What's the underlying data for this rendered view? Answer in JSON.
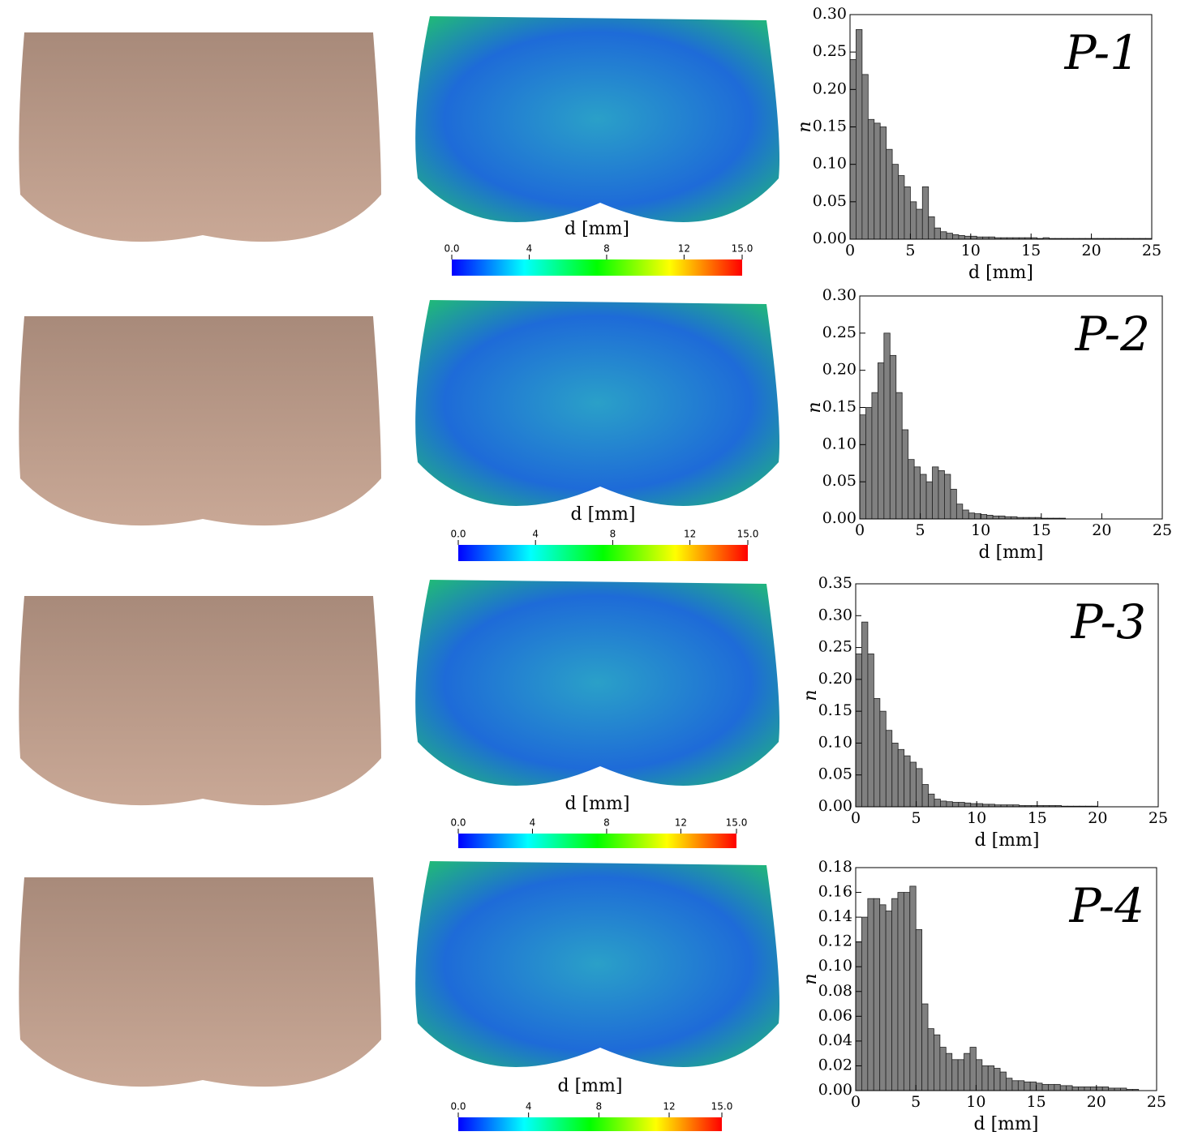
{
  "chart_data": [
    {
      "type": "histogram",
      "title": "P-1",
      "xlabel": "d [mm]",
      "ylabel": "n",
      "color": "#808080",
      "bins": [
        0,
        0.5,
        1,
        1.5,
        2,
        2.5,
        3,
        3.5,
        4,
        4.5,
        5,
        5.5,
        6,
        6.5,
        7,
        7.5,
        8,
        8.5,
        9,
        9.5,
        10,
        10.5,
        11,
        11.5,
        12,
        12.5,
        13,
        13.5,
        14,
        14.5,
        15,
        15.5,
        16,
        16.5,
        17,
        17.5,
        18,
        18.5,
        19,
        19.5,
        20,
        20.5,
        21,
        21.5,
        22,
        22.5,
        23,
        23.5,
        24,
        24.5,
        25
      ],
      "values": [
        0.24,
        0.28,
        0.22,
        0.16,
        0.155,
        0.15,
        0.12,
        0.1,
        0.085,
        0.07,
        0.05,
        0.04,
        0.07,
        0.03,
        0.015,
        0.01,
        0.008,
        0.006,
        0.005,
        0.004,
        0.004,
        0.003,
        0.003,
        0.003,
        0.002,
        0.002,
        0.002,
        0.002,
        0.002,
        0.002,
        0.002,
        0.001,
        0.002,
        0.001,
        0.001,
        0.001,
        0.001,
        0.001,
        0.001,
        0.001,
        0.001,
        0.001,
        0.001,
        0.001,
        0.001,
        0.001,
        0.001,
        0.001,
        0.001,
        0.001
      ],
      "xlim": [
        0,
        25
      ],
      "xticks": [
        0,
        5,
        10,
        15,
        20,
        25
      ],
      "ylim": [
        0,
        0.3
      ],
      "yticks": [
        {
          "value": 0,
          "label": "0.00"
        },
        {
          "value": 0.05,
          "label": "0.05"
        },
        {
          "value": 0.1,
          "label": "0.10"
        },
        {
          "value": 0.15,
          "label": "0.15"
        },
        {
          "value": 0.2,
          "label": "0.20"
        },
        {
          "value": 0.25,
          "label": "0.25"
        },
        {
          "value": 0.3,
          "label": "0.30"
        }
      ]
    },
    {
      "type": "histogram",
      "title": "P-2",
      "xlabel": "d [mm]",
      "ylabel": "n",
      "color": "#808080",
      "bins": [
        0,
        0.5,
        1,
        1.5,
        2,
        2.5,
        3,
        3.5,
        4,
        4.5,
        5,
        5.5,
        6,
        6.5,
        7,
        7.5,
        8,
        8.5,
        9,
        9.5,
        10,
        10.5,
        11,
        11.5,
        12,
        12.5,
        13,
        13.5,
        14,
        14.5,
        15,
        15.5,
        16,
        16.5,
        17,
        17.5,
        18,
        18.5,
        19,
        19.5,
        20,
        20.5,
        21,
        21.5,
        22,
        22.5,
        23,
        23.5,
        24,
        24.5,
        25
      ],
      "values": [
        0.14,
        0.15,
        0.17,
        0.21,
        0.25,
        0.22,
        0.17,
        0.12,
        0.08,
        0.07,
        0.06,
        0.05,
        0.07,
        0.065,
        0.06,
        0.04,
        0.02,
        0.012,
        0.008,
        0.007,
        0.006,
        0.005,
        0.004,
        0.004,
        0.003,
        0.003,
        0.002,
        0.002,
        0.002,
        0.002,
        0.001,
        0.001,
        0.001,
        0.001,
        0,
        0,
        0,
        0,
        0,
        0,
        0,
        0,
        0,
        0,
        0,
        0,
        0,
        0,
        0,
        0
      ],
      "xlim": [
        0,
        25
      ],
      "xticks": [
        0,
        5,
        10,
        15,
        20,
        25
      ],
      "ylim": [
        0,
        0.3
      ],
      "yticks": [
        {
          "value": 0,
          "label": "0.00"
        },
        {
          "value": 0.05,
          "label": "0.05"
        },
        {
          "value": 0.1,
          "label": "0.10"
        },
        {
          "value": 0.15,
          "label": "0.15"
        },
        {
          "value": 0.2,
          "label": "0.20"
        },
        {
          "value": 0.25,
          "label": "0.25"
        },
        {
          "value": 0.3,
          "label": "0.30"
        }
      ]
    },
    {
      "type": "histogram",
      "title": "P-3",
      "xlabel": "d [mm]",
      "ylabel": "n",
      "color": "#808080",
      "bins": [
        0,
        0.5,
        1,
        1.5,
        2,
        2.5,
        3,
        3.5,
        4,
        4.5,
        5,
        5.5,
        6,
        6.5,
        7,
        7.5,
        8,
        8.5,
        9,
        9.5,
        10,
        10.5,
        11,
        11.5,
        12,
        12.5,
        13,
        13.5,
        14,
        14.5,
        15,
        15.5,
        16,
        16.5,
        17,
        17.5,
        18,
        18.5,
        19,
        19.5,
        20,
        20.5,
        21,
        21.5,
        22,
        22.5,
        23,
        23.5,
        24,
        24.5,
        25
      ],
      "values": [
        0.24,
        0.29,
        0.24,
        0.17,
        0.15,
        0.12,
        0.1,
        0.09,
        0.08,
        0.07,
        0.06,
        0.035,
        0.02,
        0.012,
        0.009,
        0.008,
        0.007,
        0.007,
        0.006,
        0.005,
        0.005,
        0.004,
        0.004,
        0.003,
        0.003,
        0.003,
        0.003,
        0.002,
        0.002,
        0.002,
        0.002,
        0.002,
        0.002,
        0.002,
        0.001,
        0.001,
        0.001,
        0.001,
        0.001,
        0.001,
        0,
        0,
        0,
        0,
        0,
        0,
        0,
        0,
        0,
        0
      ],
      "xlim": [
        0,
        25
      ],
      "xticks": [
        0,
        5,
        10,
        15,
        20,
        25
      ],
      "ylim": [
        0,
        0.35
      ],
      "yticks": [
        {
          "value": 0,
          "label": "0.00"
        },
        {
          "value": 0.05,
          "label": "0.05"
        },
        {
          "value": 0.1,
          "label": "0.10"
        },
        {
          "value": 0.15,
          "label": "0.15"
        },
        {
          "value": 0.2,
          "label": "0.20"
        },
        {
          "value": 0.25,
          "label": "0.25"
        },
        {
          "value": 0.3,
          "label": "0.30"
        },
        {
          "value": 0.35,
          "label": "0.35"
        }
      ]
    },
    {
      "type": "histogram",
      "title": "P-4",
      "xlabel": "d [mm]",
      "ylabel": "n",
      "color": "#808080",
      "bins": [
        0,
        0.5,
        1,
        1.5,
        2,
        2.5,
        3,
        3.5,
        4,
        4.5,
        5,
        5.5,
        6,
        6.5,
        7,
        7.5,
        8,
        8.5,
        9,
        9.5,
        10,
        10.5,
        11,
        11.5,
        12,
        12.5,
        13,
        13.5,
        14,
        14.5,
        15,
        15.5,
        16,
        16.5,
        17,
        17.5,
        18,
        18.5,
        19,
        19.5,
        20,
        20.5,
        21,
        21.5,
        22,
        22.5,
        23,
        23.5,
        24,
        24.5,
        25
      ],
      "values": [
        0.12,
        0.14,
        0.155,
        0.155,
        0.15,
        0.145,
        0.155,
        0.16,
        0.16,
        0.165,
        0.13,
        0.07,
        0.05,
        0.045,
        0.035,
        0.03,
        0.025,
        0.025,
        0.03,
        0.035,
        0.025,
        0.02,
        0.02,
        0.018,
        0.015,
        0.01,
        0.008,
        0.008,
        0.007,
        0.007,
        0.006,
        0.005,
        0.005,
        0.005,
        0.004,
        0.004,
        0.003,
        0.003,
        0.003,
        0.003,
        0.003,
        0.003,
        0.002,
        0.002,
        0.002,
        0.001,
        0.001,
        0,
        0,
        0
      ],
      "xlim": [
        0,
        25
      ],
      "xticks": [
        0,
        5,
        10,
        15,
        20,
        25
      ],
      "ylim": [
        0,
        0.18
      ],
      "yticks": [
        {
          "value": 0,
          "label": "0.00"
        },
        {
          "value": 0.02,
          "label": "0.02"
        },
        {
          "value": 0.04,
          "label": "0.04"
        },
        {
          "value": 0.06,
          "label": "0.06"
        },
        {
          "value": 0.08,
          "label": "0.08"
        },
        {
          "value": 0.1,
          "label": "0.10"
        },
        {
          "value": 0.12,
          "label": "0.12"
        },
        {
          "value": 0.14,
          "label": "0.14"
        },
        {
          "value": 0.16,
          "label": "0.16"
        },
        {
          "value": 0.18,
          "label": "0.18"
        }
      ]
    }
  ],
  "colorbars": [
    {
      "label": "d [mm]",
      "lim": [
        0,
        15
      ],
      "colors": [
        "#0000ff",
        "#00ffff",
        "#00ff00",
        "#ffff00",
        "#ff0000"
      ],
      "ticks": [
        {
          "value": 0,
          "label": "0.0"
        },
        4,
        8,
        12,
        {
          "value": 15,
          "label": "15.0"
        }
      ]
    },
    {
      "label": "d [mm]",
      "lim": [
        0,
        15
      ],
      "colors": [
        "#0000ff",
        "#00ffff",
        "#00ff00",
        "#ffff00",
        "#ff0000"
      ],
      "ticks": [
        {
          "value": 0,
          "label": "0.0"
        },
        4,
        8,
        12,
        {
          "value": 15,
          "label": "15.0"
        }
      ]
    },
    {
      "label": "d [mm]",
      "lim": [
        0,
        15
      ],
      "colors": [
        "#0000ff",
        "#00ffff",
        "#00ff00",
        "#ffff00",
        "#ff0000"
      ],
      "ticks": [
        {
          "value": 0,
          "label": "0.0"
        },
        4,
        8,
        12,
        {
          "value": 15,
          "label": "15.0"
        }
      ]
    },
    {
      "label": "d [mm]",
      "lim": [
        0,
        15
      ],
      "colors": [
        "#0000ff",
        "#00ffff",
        "#00ff00",
        "#ffff00",
        "#ff0000"
      ],
      "ticks": [
        {
          "value": 0,
          "label": "0.0"
        },
        4,
        8,
        12,
        {
          "value": 15,
          "label": "15.0"
        }
      ]
    }
  ]
}
